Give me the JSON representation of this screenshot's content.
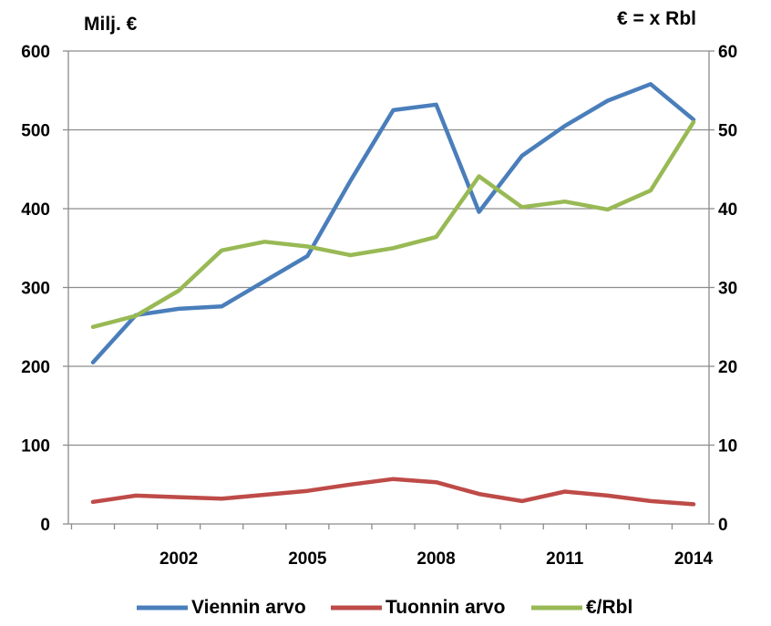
{
  "chart_data": {
    "type": "line",
    "left_unit_label": "Milj. €",
    "right_unit_label": "€ = x Rbl",
    "x": [
      2000,
      2001,
      2002,
      2003,
      2004,
      2005,
      2006,
      2007,
      2008,
      2009,
      2010,
      2011,
      2012,
      2013,
      2014
    ],
    "x_tick_labels": [
      "2002",
      "2005",
      "2008",
      "2011",
      "2014"
    ],
    "x_tick_values": [
      2002,
      2005,
      2008,
      2011,
      2014
    ],
    "y_left": {
      "ylim": [
        0,
        600
      ],
      "tick_labels": [
        "0",
        "100",
        "200",
        "300",
        "400",
        "500",
        "600"
      ],
      "tick_values": [
        0,
        100,
        200,
        300,
        400,
        500,
        600
      ]
    },
    "y_right": {
      "ylim": [
        0,
        60
      ],
      "tick_labels": [
        "0",
        "10",
        "20",
        "30",
        "40",
        "50",
        "60"
      ],
      "tick_values": [
        0,
        10,
        20,
        30,
        40,
        50,
        60
      ]
    },
    "grid": "horizontal",
    "legend_position": "bottom",
    "series": [
      {
        "name": "Viennin arvo",
        "axis": "left",
        "color": "#4a7ebb",
        "values": [
          205,
          265,
          273,
          276,
          308,
          340,
          435,
          525,
          532,
          396,
          467,
          505,
          537,
          558,
          513
        ]
      },
      {
        "name": "Tuonnin arvo",
        "axis": "left",
        "color": "#be4b48",
        "values": [
          28,
          36,
          34,
          32,
          37,
          42,
          50,
          57,
          53,
          38,
          29,
          41,
          36,
          29,
          25
        ]
      },
      {
        "name": "€/Rbl",
        "axis": "right",
        "color": "#98b954",
        "values": [
          25.0,
          26.4,
          29.6,
          34.7,
          35.8,
          35.2,
          34.1,
          35.0,
          36.4,
          44.1,
          40.2,
          40.9,
          39.9,
          42.3,
          51.0
        ]
      }
    ]
  }
}
